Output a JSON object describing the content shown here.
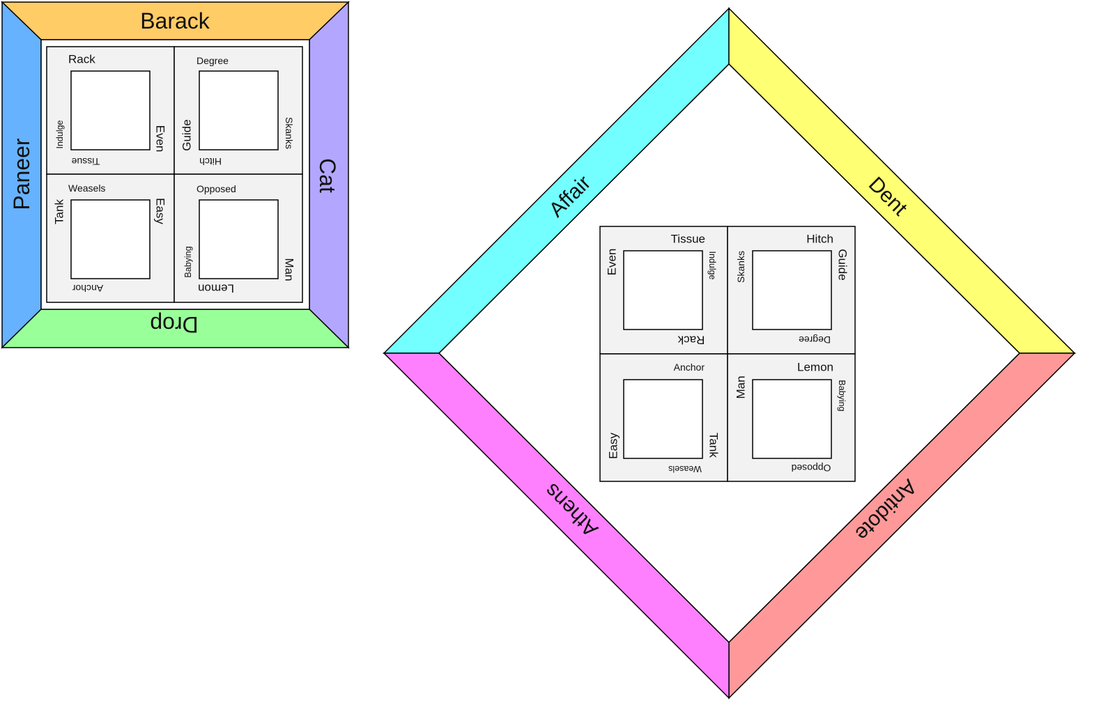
{
  "colors": {
    "top": "#ffcc66",
    "left": "#66b2ff",
    "right": "#b3a6ff",
    "bottom": "#99ff99",
    "cyan": "#73ffff",
    "yellow": "#ffff73",
    "magenta": "#ff80ff",
    "salmon": "#ff9999",
    "cell": "#f2f2f2",
    "stroke": "#000000"
  },
  "square_frame": {
    "top": "Barack",
    "left": "Paneer",
    "right": "Cat",
    "bottom": "Drop",
    "cells": [
      {
        "top": "Rack",
        "left": "Indulge",
        "right": "Even",
        "bottom": "Tissue"
      },
      {
        "top": "Degree",
        "left": "Guide",
        "right": "Skanks",
        "bottom": "Hitch"
      },
      {
        "top": "Weasels",
        "left": "Tank",
        "right": "Easy",
        "bottom": "Anchor"
      },
      {
        "top": "Opposed",
        "left": "Babying",
        "right": "Man",
        "bottom": "Lemon"
      }
    ]
  },
  "diamond_frame": {
    "upper_left": "Affair",
    "upper_right": "Dent",
    "lower_left": "Athens",
    "lower_right": "Antidote",
    "cells": [
      {
        "top": "Tissue",
        "left": "Even",
        "right": "Indulge",
        "bottom": "Rack"
      },
      {
        "top": "Hitch",
        "left": "Skanks",
        "right": "Guide",
        "bottom": "Degree"
      },
      {
        "top": "Anchor",
        "left": "Easy",
        "right": "Tank",
        "bottom": "Weasels"
      },
      {
        "top": "Lemon",
        "left": "Man",
        "right": "Babying",
        "bottom": "Opposed"
      }
    ]
  }
}
